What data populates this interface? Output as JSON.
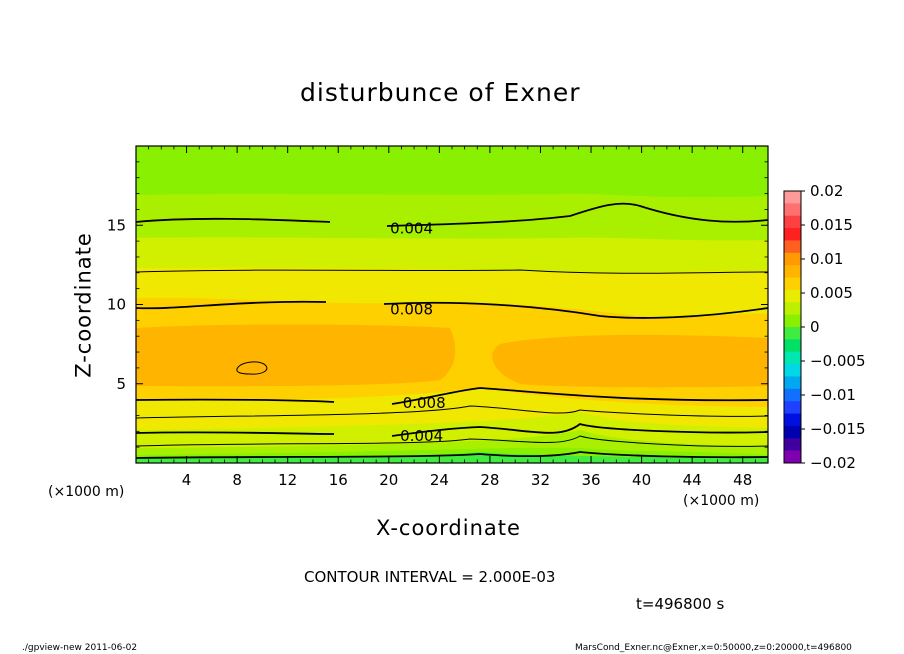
{
  "chart_data": {
    "type": "heatmap",
    "title": "disturbunce of Exner",
    "xlabel": "X-coordinate",
    "ylabel": "Z-coordinate",
    "x_unit_left": "(×1000 m)",
    "x_unit_right": "(×1000 m)",
    "xlim": [
      0,
      50
    ],
    "ylim": [
      0,
      20
    ],
    "x_ticks": [
      "4",
      "8",
      "12",
      "16",
      "20",
      "24",
      "28",
      "32",
      "36",
      "40",
      "44",
      "48"
    ],
    "y_ticks": [
      "5",
      "10",
      "15"
    ],
    "colorbar": {
      "range": [
        -0.02,
        0.02
      ],
      "tick_labels": [
        "0.02",
        "0.015",
        "0.01",
        "0.005",
        "0",
        "−0.005",
        "−0.01",
        "−0.015",
        "−0.02"
      ],
      "colors_top_to_bottom": [
        "#ff9a9a",
        "#ff7070",
        "#ff4040",
        "#ff2020",
        "#ff6020",
        "#ff9a00",
        "#ffb400",
        "#ffd000",
        "#e8ec00",
        "#bcf000",
        "#88f000",
        "#40ec40",
        "#00e066",
        "#00e8b0",
        "#00d8e8",
        "#00a8f0",
        "#1070ff",
        "#2040ff",
        "#0010e0",
        "#0000b0",
        "#4000a0",
        "#8000b0"
      ]
    },
    "contour_labels": [
      {
        "text": "0.004",
        "x": 21.8,
        "z": 14.8
      },
      {
        "text": "0.008",
        "x": 21.8,
        "z": 9.7
      },
      {
        "text": "0.008",
        "x": 22.8,
        "z": 3.8
      },
      {
        "text": "0.004",
        "x": 22.6,
        "z": 1.7
      }
    ],
    "contour_interval_text": "CONTOUR INTERVAL = 2.000E-03",
    "time_text": "t=496800 s"
  },
  "footer": {
    "left": "./gpview-new  2011-06-02",
    "right": "MarsCond_Exner.nc@Exner,x=0:50000,z=0:20000,t=496800"
  }
}
